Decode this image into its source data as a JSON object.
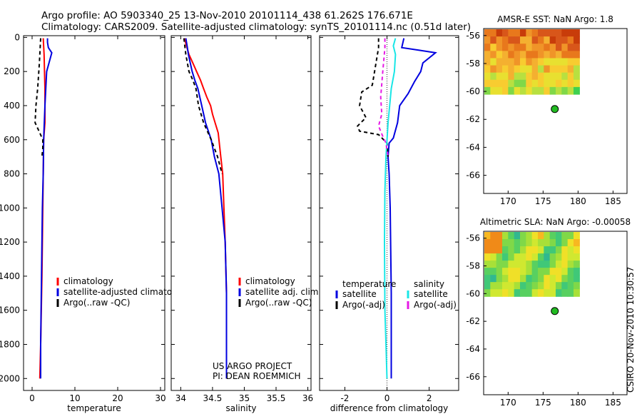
{
  "header": {
    "line1": "Argo profile: AO 5903340_25 13-Nov-2010 20101114_438 61.262S 176.671E",
    "line2": "Climatology: CARS2009. Satellite-adjusted climatology: synTS_20101114.nc (0.51d later)"
  },
  "side_label": "CSIRO 20-Nov-2010 10:30:57",
  "colors": {
    "red": "#ff0000",
    "blue": "#0000e0",
    "black": "#000000",
    "cyan": "#19e6e6",
    "magenta": "#e619e6",
    "marker": "#22bb22"
  },
  "chart_data": [
    {
      "type": "line",
      "id": "temperature",
      "xlabel": "temperature",
      "ylabel": "",
      "xlim": [
        -2,
        31
      ],
      "ylim": [
        2070,
        -10
      ],
      "xticks": [
        0,
        10,
        20,
        30
      ],
      "yticks": [
        0,
        200,
        400,
        600,
        800,
        1000,
        1200,
        1400,
        1600,
        1800,
        2000
      ],
      "legend": [
        "climatology",
        "satellite-adjusted climatology",
        "Argo(..raw -QC)"
      ],
      "series": [
        {
          "name": "climatology",
          "color": "red",
          "dash": "none",
          "x": [
            2.6,
            2.8,
            3.0,
            3.0,
            2.7,
            2.6,
            2.5,
            2.3,
            2.0,
            1.8
          ],
          "y": [
            5,
            100,
            300,
            500,
            600,
            800,
            1000,
            1400,
            1800,
            2000
          ]
        },
        {
          "name": "satellite-adjusted climatology",
          "color": "blue",
          "dash": "none",
          "x": [
            3.6,
            3.6,
            3.8,
            4.6,
            3.4,
            3.0,
            2.7,
            2.6,
            2.4,
            2.2,
            2.0,
            2.0
          ],
          "y": [
            5,
            30,
            60,
            90,
            200,
            400,
            600,
            800,
            1000,
            1400,
            1800,
            2000
          ]
        },
        {
          "name": "Argo(..raw -QC)",
          "color": "black",
          "dash": "5,4",
          "x": [
            2.0,
            1.7,
            1.3,
            0.9,
            0.7,
            1.8,
            2.5,
            2.5,
            2.3
          ],
          "y": [
            5,
            150,
            300,
            400,
            500,
            560,
            600,
            650,
            700
          ]
        }
      ]
    },
    {
      "type": "line",
      "id": "salinity",
      "xlabel": "salinity",
      "ylabel": "",
      "xlim": [
        33.85,
        36.05
      ],
      "ylim": [
        2070,
        -10
      ],
      "xticks": [
        34,
        34.5,
        35,
        35.5,
        36
      ],
      "legend": [
        "climatology",
        "satellite adj. clim.",
        "Argo(..raw -QC)"
      ],
      "annotation": [
        "US ARGO PROJECT",
        "PI: DEAN ROEMMICH"
      ],
      "series": [
        {
          "name": "climatology",
          "color": "red",
          "dash": "none",
          "x": [
            34.06,
            34.09,
            34.13,
            34.19,
            34.25,
            34.31,
            34.36,
            34.41,
            34.47,
            34.5,
            34.54,
            34.59,
            34.63,
            34.66,
            34.68,
            34.7,
            34.72,
            34.72
          ],
          "y": [
            5,
            50,
            100,
            150,
            200,
            250,
            300,
            350,
            400,
            450,
            500,
            560,
            700,
            800,
            1000,
            1200,
            1500,
            2000
          ]
        },
        {
          "name": "satellite adj. clim.",
          "color": "blue",
          "dash": "none",
          "x": [
            34.08,
            34.1,
            34.12,
            34.18,
            34.22,
            34.27,
            34.33,
            34.39,
            34.48,
            34.53,
            34.6,
            34.65,
            34.7,
            34.72,
            34.72
          ],
          "y": [
            5,
            50,
            100,
            200,
            250,
            300,
            400,
            500,
            600,
            700,
            800,
            1000,
            1200,
            1500,
            2000
          ]
        },
        {
          "name": "Argo(..raw -QC)",
          "color": "black",
          "dash": "5,4",
          "x": [
            34.05,
            34.08,
            34.13,
            34.19,
            34.24,
            34.28,
            34.36,
            34.48,
            34.58,
            34.65
          ],
          "y": [
            5,
            100,
            200,
            250,
            300,
            400,
            500,
            600,
            700,
            800
          ]
        }
      ]
    },
    {
      "type": "line",
      "id": "difference",
      "xlabel": "difference from climatology",
      "ylabel": "",
      "xlim": [
        -3.2,
        3.4
      ],
      "ylim": [
        2070,
        -10
      ],
      "xticks": [
        -2,
        0,
        2
      ],
      "legend_titles": [
        "temperature",
        "salinity"
      ],
      "legend": [
        "satellite",
        "Argo(-adj)",
        "satellite",
        "Argo(-adj)"
      ],
      "series": [
        {
          "name": "temperature satellite",
          "color": "blue",
          "dash": "none",
          "x": [
            0.8,
            0.7,
            1.5,
            2.3,
            1.7,
            1.6,
            1.3,
            1.0,
            0.6,
            0.5,
            0.3,
            0.1,
            0.05,
            0.1,
            0.15,
            0.2,
            0.2
          ],
          "y": [
            5,
            60,
            75,
            90,
            150,
            200,
            260,
            330,
            400,
            500,
            590,
            620,
            700,
            800,
            1000,
            1500,
            2000
          ]
        },
        {
          "name": "temperature Argo(-adj)",
          "color": "black",
          "dash": "5,4",
          "x": [
            -0.4,
            -0.4,
            -0.7,
            -1.2,
            -1.3,
            -1.0,
            -1.4,
            -1.3,
            -0.4,
            0.0,
            0.05
          ],
          "y": [
            5,
            60,
            280,
            320,
            400,
            470,
            520,
            550,
            570,
            620,
            700
          ]
        },
        {
          "name": "salinity satellite",
          "color": "cyan",
          "dash": "none",
          "x": [
            0.4,
            0.3,
            0.4,
            0.35,
            0.2,
            0.05,
            -0.05,
            -0.1,
            -0.12,
            -0.1,
            -0.05,
            0.0
          ],
          "y": [
            5,
            50,
            100,
            200,
            300,
            500,
            700,
            900,
            1200,
            1600,
            1800,
            2000
          ]
        },
        {
          "name": "salinity Argo(-adj)",
          "color": "magenta",
          "dash": "5,4",
          "x": [
            -0.1,
            -0.1,
            -0.2,
            -0.3,
            -0.25,
            -0.4,
            -0.2,
            -0.05,
            0.05
          ],
          "y": [
            5,
            60,
            200,
            350,
            450,
            520,
            580,
            620,
            700
          ]
        }
      ]
    }
  ],
  "maps": [
    {
      "title": "AMSR-E SST: NaN Argo: 1.8",
      "xlim": [
        166.5,
        187
      ],
      "ylim": [
        -67.3,
        -55.5
      ],
      "xticks": [
        170,
        175,
        180,
        185
      ],
      "yticks": [
        -56,
        -58,
        -60,
        -62,
        -64,
        -66
      ],
      "float_position": [
        176.67,
        -61.26
      ],
      "palette": "sst"
    },
    {
      "title": "Altimetric SLA: NaN Argo: -0.00058",
      "xlim": [
        166.5,
        187
      ],
      "ylim": [
        -67.3,
        -55.5
      ],
      "xticks": [
        170,
        175,
        180,
        185
      ],
      "yticks": [
        -56,
        -58,
        -60,
        -62,
        -64,
        -66
      ],
      "float_position": [
        176.67,
        -61.26
      ],
      "palette": "sla"
    }
  ]
}
